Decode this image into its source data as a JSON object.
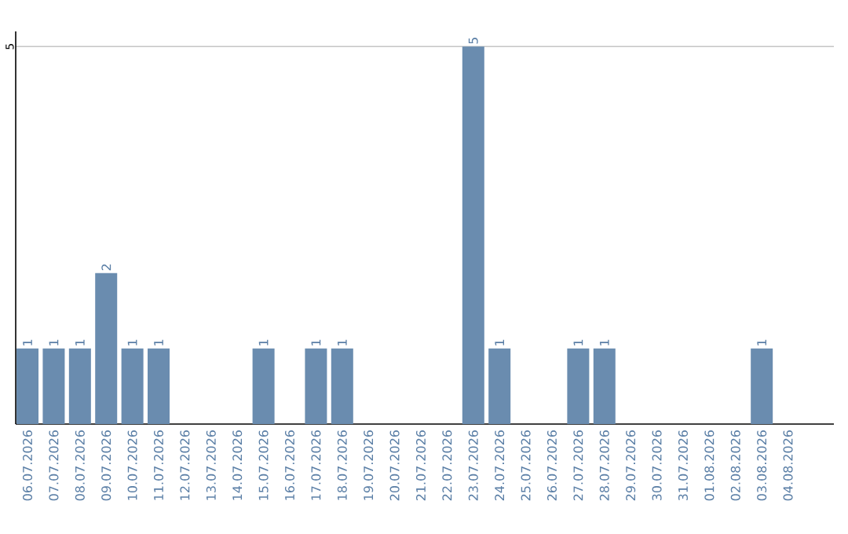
{
  "chart_data": {
    "type": "bar",
    "categories": [
      "06.07.2026",
      "07.07.2026",
      "08.07.2026",
      "09.07.2026",
      "10.07.2026",
      "11.07.2026",
      "12.07.2026",
      "13.07.2026",
      "14.07.2026",
      "15.07.2026",
      "16.07.2026",
      "17.07.2026",
      "18.07.2026",
      "19.07.2026",
      "20.07.2026",
      "21.07.2026",
      "22.07.2026",
      "23.07.2026",
      "24.07.2026",
      "25.07.2026",
      "26.07.2026",
      "27.07.2026",
      "28.07.2026",
      "29.07.2026",
      "30.07.2026",
      "31.07.2026",
      "01.08.2026",
      "02.08.2026",
      "03.08.2026",
      "04.08.2026"
    ],
    "values": [
      1,
      1,
      1,
      2,
      1,
      1,
      0,
      0,
      0,
      1,
      0,
      1,
      1,
      0,
      0,
      0,
      0,
      5,
      1,
      0,
      0,
      1,
      1,
      0,
      0,
      0,
      0,
      0,
      1,
      0
    ],
    "value_labels": [
      "1",
      "1",
      "1",
      "2",
      "1",
      "1",
      null,
      null,
      null,
      "1",
      null,
      "1",
      "1",
      null,
      null,
      null,
      null,
      "5",
      "1",
      null,
      null,
      "1",
      "1",
      null,
      null,
      null,
      null,
      null,
      "1",
      null
    ],
    "color": "#6a8caf",
    "ylim": [
      0,
      5.2
    ],
    "yticks": [
      5
    ],
    "grid": "y"
  }
}
